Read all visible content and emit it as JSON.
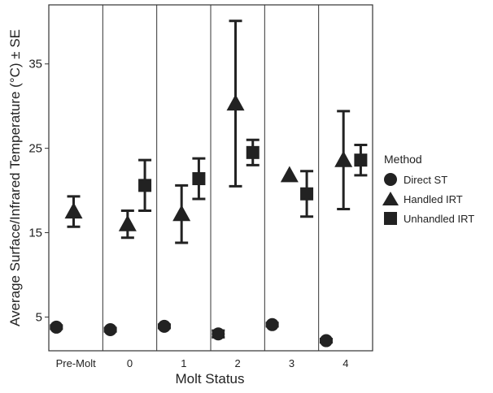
{
  "chart_data": {
    "type": "scatter",
    "xlabel": "Molt Status",
    "ylabel": "Average Surface/Infrared Temperature (°C) ± SE",
    "categories": [
      "Pre-Molt",
      "0",
      "1",
      "2",
      "3",
      "4"
    ],
    "ylim": [
      1,
      42
    ],
    "yticks": [
      5,
      15,
      25,
      35
    ],
    "grid": false,
    "legend": {
      "title": "Method",
      "placement": "right",
      "items": [
        {
          "label": "Direct ST",
          "shape": "circle"
        },
        {
          "label": "Handled IRT",
          "shape": "triangle"
        },
        {
          "label": "Unhandled IRT",
          "shape": "square"
        }
      ]
    },
    "series": [
      {
        "name": "Direct ST",
        "shape": "circle",
        "values": [
          3.8,
          3.5,
          3.9,
          3.0,
          4.1,
          2.2
        ],
        "se": [
          0.2,
          0.2,
          0.2,
          0.4,
          0.2,
          0.2
        ]
      },
      {
        "name": "Handled IRT",
        "shape": "triangle",
        "values": [
          17.5,
          16.0,
          17.2,
          30.3,
          21.8,
          23.6
        ],
        "se": [
          1.8,
          1.6,
          3.4,
          9.8,
          0.0,
          5.8
        ]
      },
      {
        "name": "Unhandled IRT",
        "shape": "square",
        "values": [
          null,
          20.6,
          21.4,
          24.5,
          19.6,
          23.6
        ],
        "se": [
          null,
          3.0,
          2.4,
          1.5,
          2.7,
          1.8
        ]
      }
    ]
  },
  "colors": {
    "ink": "#222222",
    "frame": "#333333"
  }
}
